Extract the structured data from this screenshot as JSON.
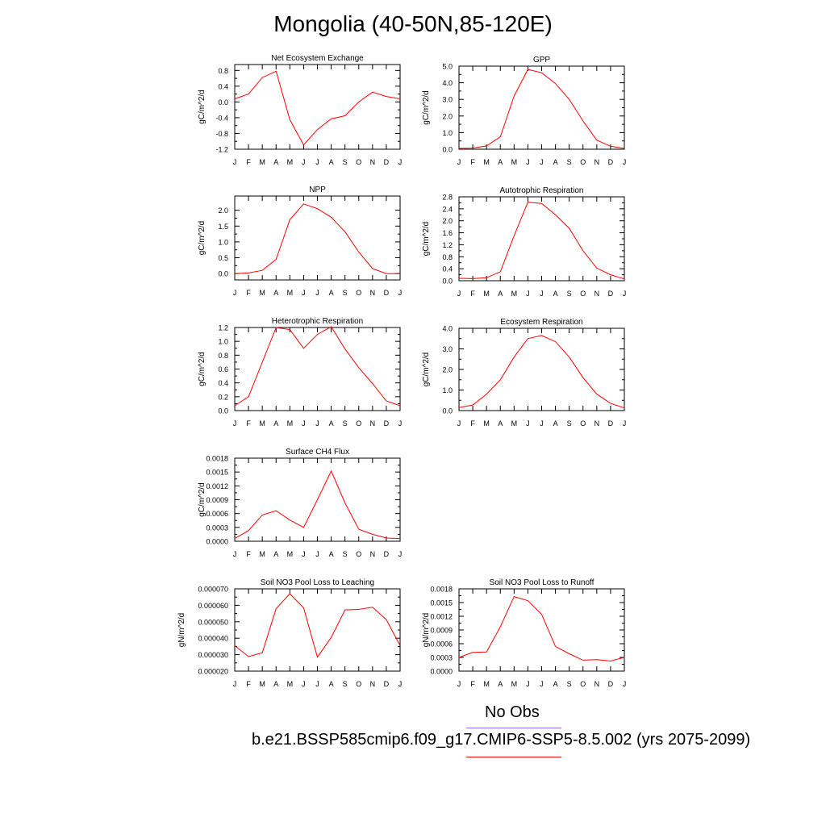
{
  "title": "Mongolia (40-50N,85-120E)",
  "legend": {
    "obs_label": "No Obs",
    "obs_color": "#7777ff",
    "model_label": "b.e21.BSSP585cmip6.f09_g17.CMIP6-SSP5-8.5.002 (yrs 2075-2099)",
    "model_color": "#ff0000"
  },
  "chart_data": [
    {
      "type": "line",
      "title": "Net Ecosystem Exchange",
      "ylabel": "gC/m^2/d",
      "categories": [
        "J",
        "F",
        "M",
        "A",
        "M",
        "J",
        "J",
        "A",
        "S",
        "O",
        "N",
        "D",
        "J"
      ],
      "ylim": [
        -1.2,
        0.95
      ],
      "yticks": [
        -1.2,
        -0.8,
        -0.4,
        0.0,
        0.4,
        0.8
      ],
      "ytick_labels": [
        "-1.2",
        "-0.8",
        "-0.4",
        "0.0",
        "0.4",
        "0.8"
      ],
      "series": [
        {
          "values": [
            0.08,
            0.2,
            0.62,
            0.78,
            -0.45,
            -1.09,
            -0.7,
            -0.43,
            -0.35,
            0.0,
            0.25,
            0.14,
            0.08
          ],
          "color": "#ff0000"
        }
      ]
    },
    {
      "type": "line",
      "title": "GPP",
      "ylabel": "gC/m^2/d",
      "categories": [
        "J",
        "F",
        "M",
        "A",
        "M",
        "J",
        "J",
        "A",
        "S",
        "O",
        "N",
        "D",
        "J"
      ],
      "ylim": [
        0.0,
        5.0
      ],
      "yticks": [
        0.0,
        1.0,
        2.0,
        3.0,
        4.0,
        5.0
      ],
      "ytick_labels": [
        "0.0",
        "1.0",
        "2.0",
        "3.0",
        "4.0",
        "5.0"
      ],
      "series": [
        {
          "values": [
            0.05,
            0.07,
            0.2,
            0.75,
            3.2,
            4.8,
            4.6,
            3.95,
            3.0,
            1.7,
            0.55,
            0.18,
            0.05
          ],
          "color": "#ff0000"
        }
      ]
    },
    {
      "type": "line",
      "title": "NPP",
      "ylabel": "gC/m^2/d",
      "categories": [
        "J",
        "F",
        "M",
        "A",
        "M",
        "J",
        "J",
        "A",
        "S",
        "O",
        "N",
        "D",
        "J"
      ],
      "ylim": [
        -0.2,
        2.45
      ],
      "yticks": [
        0.0,
        0.5,
        1.0,
        1.5,
        2.0
      ],
      "ytick_labels": [
        "0.0",
        "0.5",
        "1.0",
        "1.5",
        "2.0"
      ],
      "series": [
        {
          "values": [
            0.0,
            0.02,
            0.1,
            0.45,
            1.7,
            2.2,
            2.05,
            1.78,
            1.32,
            0.68,
            0.16,
            0.0,
            0.0
          ],
          "color": "#ff0000"
        }
      ]
    },
    {
      "type": "line",
      "title": "Autotrophic Respiration",
      "ylabel": "gC/m^2/d",
      "categories": [
        "J",
        "F",
        "M",
        "A",
        "M",
        "J",
        "J",
        "A",
        "S",
        "O",
        "N",
        "D",
        "J"
      ],
      "ylim": [
        0.0,
        2.8
      ],
      "yticks": [
        0.0,
        0.4,
        0.8,
        1.2,
        1.6,
        2.0,
        2.4,
        2.8
      ],
      "ytick_labels": [
        "0.0",
        "0.4",
        "0.8",
        "1.2",
        "1.6",
        "2.0",
        "2.4",
        "2.8"
      ],
      "series": [
        {
          "values": [
            0.08,
            0.07,
            0.1,
            0.3,
            1.5,
            2.62,
            2.58,
            2.2,
            1.75,
            1.0,
            0.42,
            0.2,
            0.06
          ],
          "color": "#ff0000"
        }
      ]
    },
    {
      "type": "line",
      "title": "Heterotrophic Respiration",
      "ylabel": "gC/m^2/d",
      "categories": [
        "J",
        "F",
        "M",
        "A",
        "M",
        "J",
        "J",
        "A",
        "S",
        "O",
        "N",
        "D",
        "J"
      ],
      "ylim": [
        0.0,
        1.2
      ],
      "yticks": [
        0.0,
        0.2,
        0.4,
        0.6,
        0.8,
        1.0,
        1.2
      ],
      "ytick_labels": [
        "0.0",
        "0.2",
        "0.4",
        "0.6",
        "0.8",
        "1.0",
        "1.2"
      ],
      "series": [
        {
          "values": [
            0.07,
            0.2,
            0.7,
            1.2,
            1.17,
            0.9,
            1.1,
            1.21,
            0.89,
            0.62,
            0.39,
            0.14,
            0.07
          ],
          "color": "#ff0000"
        }
      ]
    },
    {
      "type": "line",
      "title": "Ecosystem Respiration",
      "ylabel": "gC/m^2/d",
      "categories": [
        "J",
        "F",
        "M",
        "A",
        "M",
        "J",
        "J",
        "A",
        "S",
        "O",
        "N",
        "D",
        "J"
      ],
      "ylim": [
        0.0,
        4.0
      ],
      "yticks": [
        0.0,
        1.0,
        2.0,
        3.0,
        4.0
      ],
      "ytick_labels": [
        "0.0",
        "1.0",
        "2.0",
        "3.0",
        "4.0"
      ],
      "series": [
        {
          "values": [
            0.15,
            0.27,
            0.8,
            1.5,
            2.6,
            3.5,
            3.65,
            3.35,
            2.6,
            1.6,
            0.8,
            0.35,
            0.13
          ],
          "color": "#ff0000"
        }
      ]
    },
    {
      "type": "line",
      "title": "Surface CH4 Flux",
      "ylabel": "gC/m^2/d",
      "categories": [
        "J",
        "F",
        "M",
        "A",
        "M",
        "J",
        "J",
        "A",
        "S",
        "O",
        "N",
        "D",
        "J"
      ],
      "ylim": [
        0.0,
        0.0018
      ],
      "yticks": [
        0.0,
        0.0003,
        0.0006,
        0.0009,
        0.0012,
        0.0015,
        0.0018
      ],
      "ytick_labels": [
        "0.0000",
        "0.0003",
        "0.0006",
        "0.0009",
        "0.0012",
        "0.0015",
        "0.0018"
      ],
      "series": [
        {
          "values": [
            6e-05,
            0.00023,
            0.00057,
            0.00066,
            0.00046,
            0.0003,
            0.0009,
            0.00152,
            0.00083,
            0.00026,
            0.00015,
            7e-05,
            6e-05
          ],
          "color": "#ff0000"
        }
      ]
    },
    {
      "type": "line",
      "title": "Soil NO3 Pool Loss to Leaching",
      "ylabel": "gN/m^2/d",
      "categories": [
        "J",
        "F",
        "M",
        "A",
        "M",
        "J",
        "J",
        "A",
        "S",
        "O",
        "N",
        "D",
        "J"
      ],
      "ylim": [
        2e-05,
        7e-05
      ],
      "yticks": [
        2e-05,
        3e-05,
        4e-05,
        5e-05,
        6e-05,
        7e-05
      ],
      "ytick_labels": [
        "0.000020",
        "0.000030",
        "0.000040",
        "0.000050",
        "0.000060",
        "0.000070"
      ],
      "series": [
        {
          "values": [
            3.55e-05,
            2.88e-05,
            3.12e-05,
            5.8e-05,
            6.7e-05,
            5.85e-05,
            2.85e-05,
            4.05e-05,
            5.72e-05,
            5.75e-05,
            5.88e-05,
            5.13e-05,
            3.55e-05
          ],
          "color": "#ff0000"
        }
      ]
    },
    {
      "type": "line",
      "title": "Soil NO3 Pool Loss to Runoff",
      "ylabel": "gN/m^2/d",
      "categories": [
        "J",
        "F",
        "M",
        "A",
        "M",
        "J",
        "J",
        "A",
        "S",
        "O",
        "N",
        "D",
        "J"
      ],
      "ylim": [
        0.0,
        0.0018
      ],
      "yticks": [
        0.0,
        0.0003,
        0.0006,
        0.0009,
        0.0012,
        0.0015,
        0.0018
      ],
      "ytick_labels": [
        "0.0000",
        "0.0003",
        "0.0006",
        "0.0009",
        "0.0012",
        "0.0015",
        "0.0018"
      ],
      "series": [
        {
          "values": [
            0.0003,
            0.00041,
            0.00042,
            0.00097,
            0.00163,
            0.00154,
            0.00124,
            0.00054,
            0.00038,
            0.00024,
            0.00025,
            0.00022,
            0.0003
          ],
          "color": "#ff0000"
        }
      ]
    }
  ]
}
